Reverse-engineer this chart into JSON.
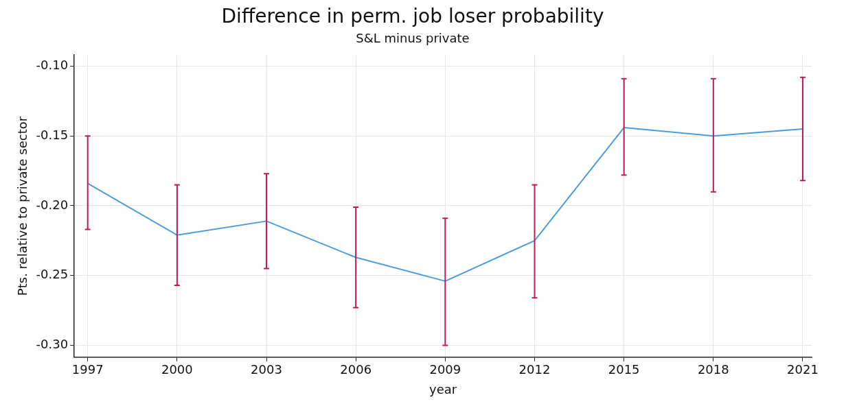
{
  "chart_data": {
    "type": "line",
    "title": "Difference in perm. job loser probability",
    "subtitle": "S&L minus private",
    "xlabel": "year",
    "ylabel": "Pts. relative to private sector",
    "x": [
      1997,
      2000,
      2003,
      2006,
      2009,
      2012,
      2015,
      2018,
      2021
    ],
    "series": [
      {
        "color": "#4a9be0",
        "values": [
          -0.184,
          -0.221,
          -0.211,
          -0.237,
          -0.254,
          -0.225,
          -0.144,
          -0.15,
          -0.145
        ],
        "errors": [
          [
            -0.217,
            -0.15
          ],
          [
            -0.257,
            -0.185
          ],
          [
            -0.245,
            -0.177
          ],
          [
            -0.273,
            -0.201
          ],
          [
            -0.3,
            -0.209
          ],
          [
            -0.266,
            -0.185
          ],
          [
            -0.178,
            -0.109
          ],
          [
            -0.19,
            -0.109
          ],
          [
            -0.182,
            -0.108
          ]
        ]
      }
    ],
    "xlim": [
      1996.55,
      2021.3
    ],
    "xticks": [
      1997,
      2000,
      2003,
      2006,
      2009,
      2012,
      2015,
      2018,
      2021
    ],
    "ylim": [
      -0.3085,
      -0.092
    ],
    "yticks": [
      {
        "value": -0.3,
        "label": "-0.30"
      },
      {
        "value": -0.25,
        "label": "-0.25"
      },
      {
        "value": -0.2,
        "label": "-0.20"
      },
      {
        "value": -0.15,
        "label": "-0.15"
      },
      {
        "value": -0.1,
        "label": "-0.10"
      }
    ],
    "grid": true,
    "legend": false,
    "marker": "none",
    "line_style": "solid"
  }
}
